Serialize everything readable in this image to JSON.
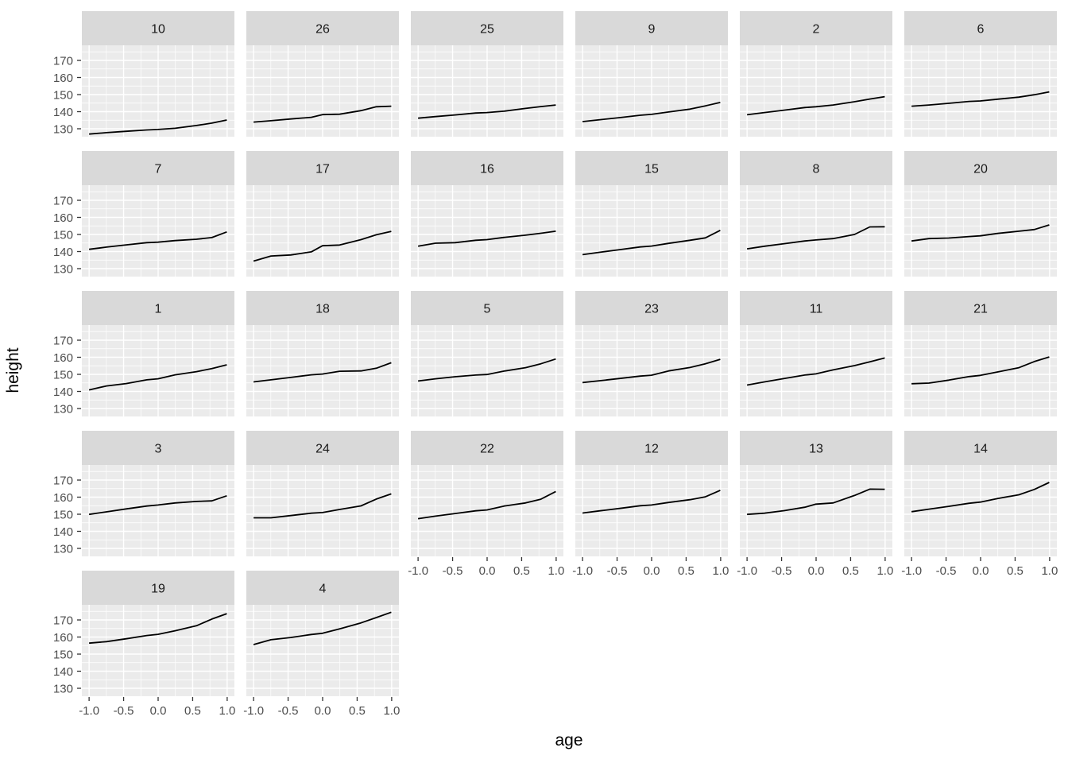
{
  "figure": {
    "background": "#FFFFFF",
    "panel_bg": "#EBEBEB",
    "strip_bg": "#D9D9D9",
    "grid_color": "#FFFFFF",
    "axis_text_color": "#4D4D4D",
    "tick_mark_color": "#333333",
    "strip_text_color": "#1A1A1A",
    "line_color": "#000000"
  },
  "chart_data": {
    "type": "line",
    "title": "",
    "xlabel": "age",
    "ylabel": "height",
    "facet_variable": "Subject",
    "legend": "none",
    "grid": "major-and-minor",
    "layout": {
      "rows": 5,
      "cols": 6,
      "note": "facets fill rows left-to-right; last row has 2 panels"
    },
    "x": [
      -1.0,
      -0.7479,
      -0.463,
      -0.1643,
      -0.0027,
      0.2466,
      0.5562,
      0.7781,
      0.9945
    ],
    "xlim": [
      -1.105,
      1.105
    ],
    "ylim": [
      125.35,
      178.84
    ],
    "x_ticks": [
      -1.0,
      -0.5,
      0.0,
      0.5,
      1.0
    ],
    "x_tick_labels": [
      "-1.0",
      "-0.5",
      "0.0",
      "0.5",
      "1.0"
    ],
    "x_minor_ticks": [
      -0.75,
      -0.25,
      0.25,
      0.75
    ],
    "y_ticks": [
      130,
      140,
      150,
      160,
      170
    ],
    "y_tick_labels": [
      "130",
      "140",
      "150",
      "160",
      "170"
    ],
    "y_minor_ticks": [
      135,
      145,
      155,
      165,
      175
    ],
    "facets": [
      {
        "label": "10",
        "row": 0,
        "col": 0,
        "y": [
          126.9,
          127.7,
          128.5,
          129.3,
          129.6,
          130.3,
          131.9,
          133.3,
          135.1
        ]
      },
      {
        "label": "26",
        "row": 0,
        "col": 1,
        "y": [
          133.9,
          134.7,
          135.7,
          136.7,
          138.3,
          138.5,
          140.6,
          142.9,
          143.2
        ]
      },
      {
        "label": "25",
        "row": 0,
        "col": 2,
        "y": [
          136.2,
          137.1,
          138.1,
          139.2,
          139.5,
          140.3,
          141.9,
          143.0,
          143.9
        ]
      },
      {
        "label": "9",
        "row": 0,
        "col": 3,
        "y": [
          134.2,
          135.3,
          136.5,
          137.9,
          138.4,
          139.8,
          141.5,
          143.4,
          145.4
        ]
      },
      {
        "label": "2",
        "row": 0,
        "col": 4,
        "y": [
          138.2,
          139.5,
          140.9,
          142.4,
          142.9,
          143.9,
          145.8,
          147.4,
          148.8
        ]
      },
      {
        "label": "6",
        "row": 0,
        "col": 5,
        "y": [
          143.2,
          143.9,
          144.9,
          146.0,
          146.3,
          147.3,
          148.5,
          149.9,
          151.6
        ]
      },
      {
        "label": "7",
        "row": 1,
        "col": 0,
        "y": [
          141.3,
          142.6,
          143.9,
          145.2,
          145.5,
          146.4,
          147.2,
          148.2,
          151.5
        ]
      },
      {
        "label": "17",
        "row": 1,
        "col": 1,
        "y": [
          134.4,
          137.4,
          138.0,
          139.8,
          143.4,
          143.8,
          147.0,
          149.8,
          151.8
        ]
      },
      {
        "label": "16",
        "row": 1,
        "col": 2,
        "y": [
          143.1,
          144.9,
          145.2,
          146.6,
          147.0,
          148.3,
          149.6,
          150.7,
          151.9
        ]
      },
      {
        "label": "15",
        "row": 1,
        "col": 3,
        "y": [
          138.2,
          139.6,
          141.1,
          142.7,
          143.2,
          144.8,
          146.6,
          148.0,
          152.4
        ]
      },
      {
        "label": "8",
        "row": 1,
        "col": 4,
        "y": [
          141.6,
          143.1,
          144.6,
          146.2,
          146.8,
          147.6,
          150.0,
          154.4,
          154.5
        ]
      },
      {
        "label": "20",
        "row": 1,
        "col": 5,
        "y": [
          146.2,
          147.6,
          147.9,
          148.8,
          149.2,
          150.6,
          151.9,
          152.9,
          155.6
        ]
      },
      {
        "label": "1",
        "row": 2,
        "col": 0,
        "y": [
          140.9,
          143.2,
          144.6,
          146.8,
          147.4,
          149.7,
          151.6,
          153.4,
          155.6
        ]
      },
      {
        "label": "18",
        "row": 2,
        "col": 1,
        "y": [
          145.6,
          146.8,
          148.2,
          149.7,
          150.2,
          151.8,
          152.0,
          153.6,
          156.8
        ]
      },
      {
        "label": "5",
        "row": 2,
        "col": 2,
        "y": [
          146.1,
          147.4,
          148.6,
          149.6,
          149.9,
          151.9,
          153.9,
          156.2,
          159.0
        ]
      },
      {
        "label": "23",
        "row": 2,
        "col": 3,
        "y": [
          145.2,
          146.3,
          147.6,
          149.0,
          149.5,
          152.0,
          154.0,
          156.2,
          158.8
        ]
      },
      {
        "label": "11",
        "row": 2,
        "col": 4,
        "y": [
          143.7,
          145.6,
          147.6,
          149.6,
          150.3,
          152.6,
          155.1,
          157.3,
          159.6
        ]
      },
      {
        "label": "21",
        "row": 2,
        "col": 5,
        "y": [
          144.5,
          144.9,
          146.6,
          148.7,
          149.4,
          151.4,
          153.9,
          157.5,
          160.2
        ]
      },
      {
        "label": "3",
        "row": 3,
        "col": 0,
        "y": [
          149.9,
          151.4,
          153.1,
          154.8,
          155.4,
          156.6,
          157.5,
          157.8,
          160.8
        ]
      },
      {
        "label": "24",
        "row": 3,
        "col": 1,
        "y": [
          147.9,
          147.9,
          149.2,
          150.6,
          151.0,
          152.8,
          154.9,
          158.9,
          161.9
        ]
      },
      {
        "label": "22",
        "row": 3,
        "col": 2,
        "y": [
          147.4,
          148.9,
          150.4,
          152.0,
          152.5,
          154.8,
          156.6,
          158.8,
          163.3
        ]
      },
      {
        "label": "12",
        "row": 3,
        "col": 3,
        "y": [
          150.7,
          152.0,
          153.4,
          155.0,
          155.4,
          156.9,
          158.5,
          160.2,
          164.0
        ]
      },
      {
        "label": "13",
        "row": 3,
        "col": 4,
        "y": [
          149.9,
          150.6,
          152.1,
          154.1,
          155.9,
          156.6,
          161.0,
          164.7,
          164.6
        ]
      },
      {
        "label": "14",
        "row": 3,
        "col": 5,
        "y": [
          151.5,
          153.0,
          154.6,
          156.4,
          157.1,
          159.2,
          161.4,
          164.5,
          168.6
        ]
      },
      {
        "label": "19",
        "row": 4,
        "col": 0,
        "y": [
          156.4,
          157.3,
          159.0,
          160.9,
          161.6,
          163.7,
          166.6,
          170.5,
          173.7
        ]
      },
      {
        "label": "4",
        "row": 4,
        "col": 1,
        "y": [
          155.6,
          158.4,
          159.7,
          161.5,
          162.2,
          164.8,
          168.3,
          171.4,
          174.5
        ]
      }
    ]
  }
}
